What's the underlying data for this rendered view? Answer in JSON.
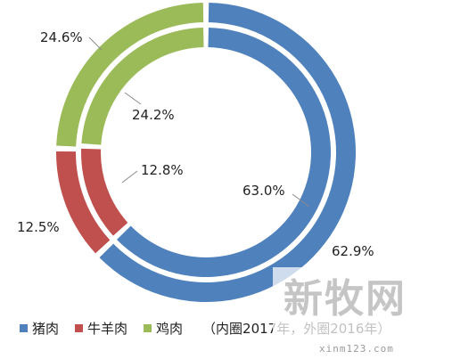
{
  "chart_data": {
    "type": "pie",
    "variant": "double-doughnut",
    "categories": [
      "猪肉",
      "牛羊肉",
      "鸡肉"
    ],
    "colors": [
      "#4F81BD",
      "#C0504D",
      "#9BBB59"
    ],
    "series": [
      {
        "name": "2017年",
        "ring": "inner",
        "values": [
          63.0,
          12.8,
          24.2
        ],
        "labels": [
          "63.0%",
          "12.8%",
          "24.2%"
        ]
      },
      {
        "name": "2016年",
        "ring": "outer",
        "values": [
          62.9,
          12.5,
          24.6
        ],
        "labels": [
          "62.9%",
          "12.5%",
          "24.6%"
        ]
      }
    ],
    "legend_position": "bottom-left",
    "legend_note": "（内圈2017年，外圈2016年）"
  },
  "watermark": {
    "text": "新牧网",
    "url": "xinm123.com"
  }
}
